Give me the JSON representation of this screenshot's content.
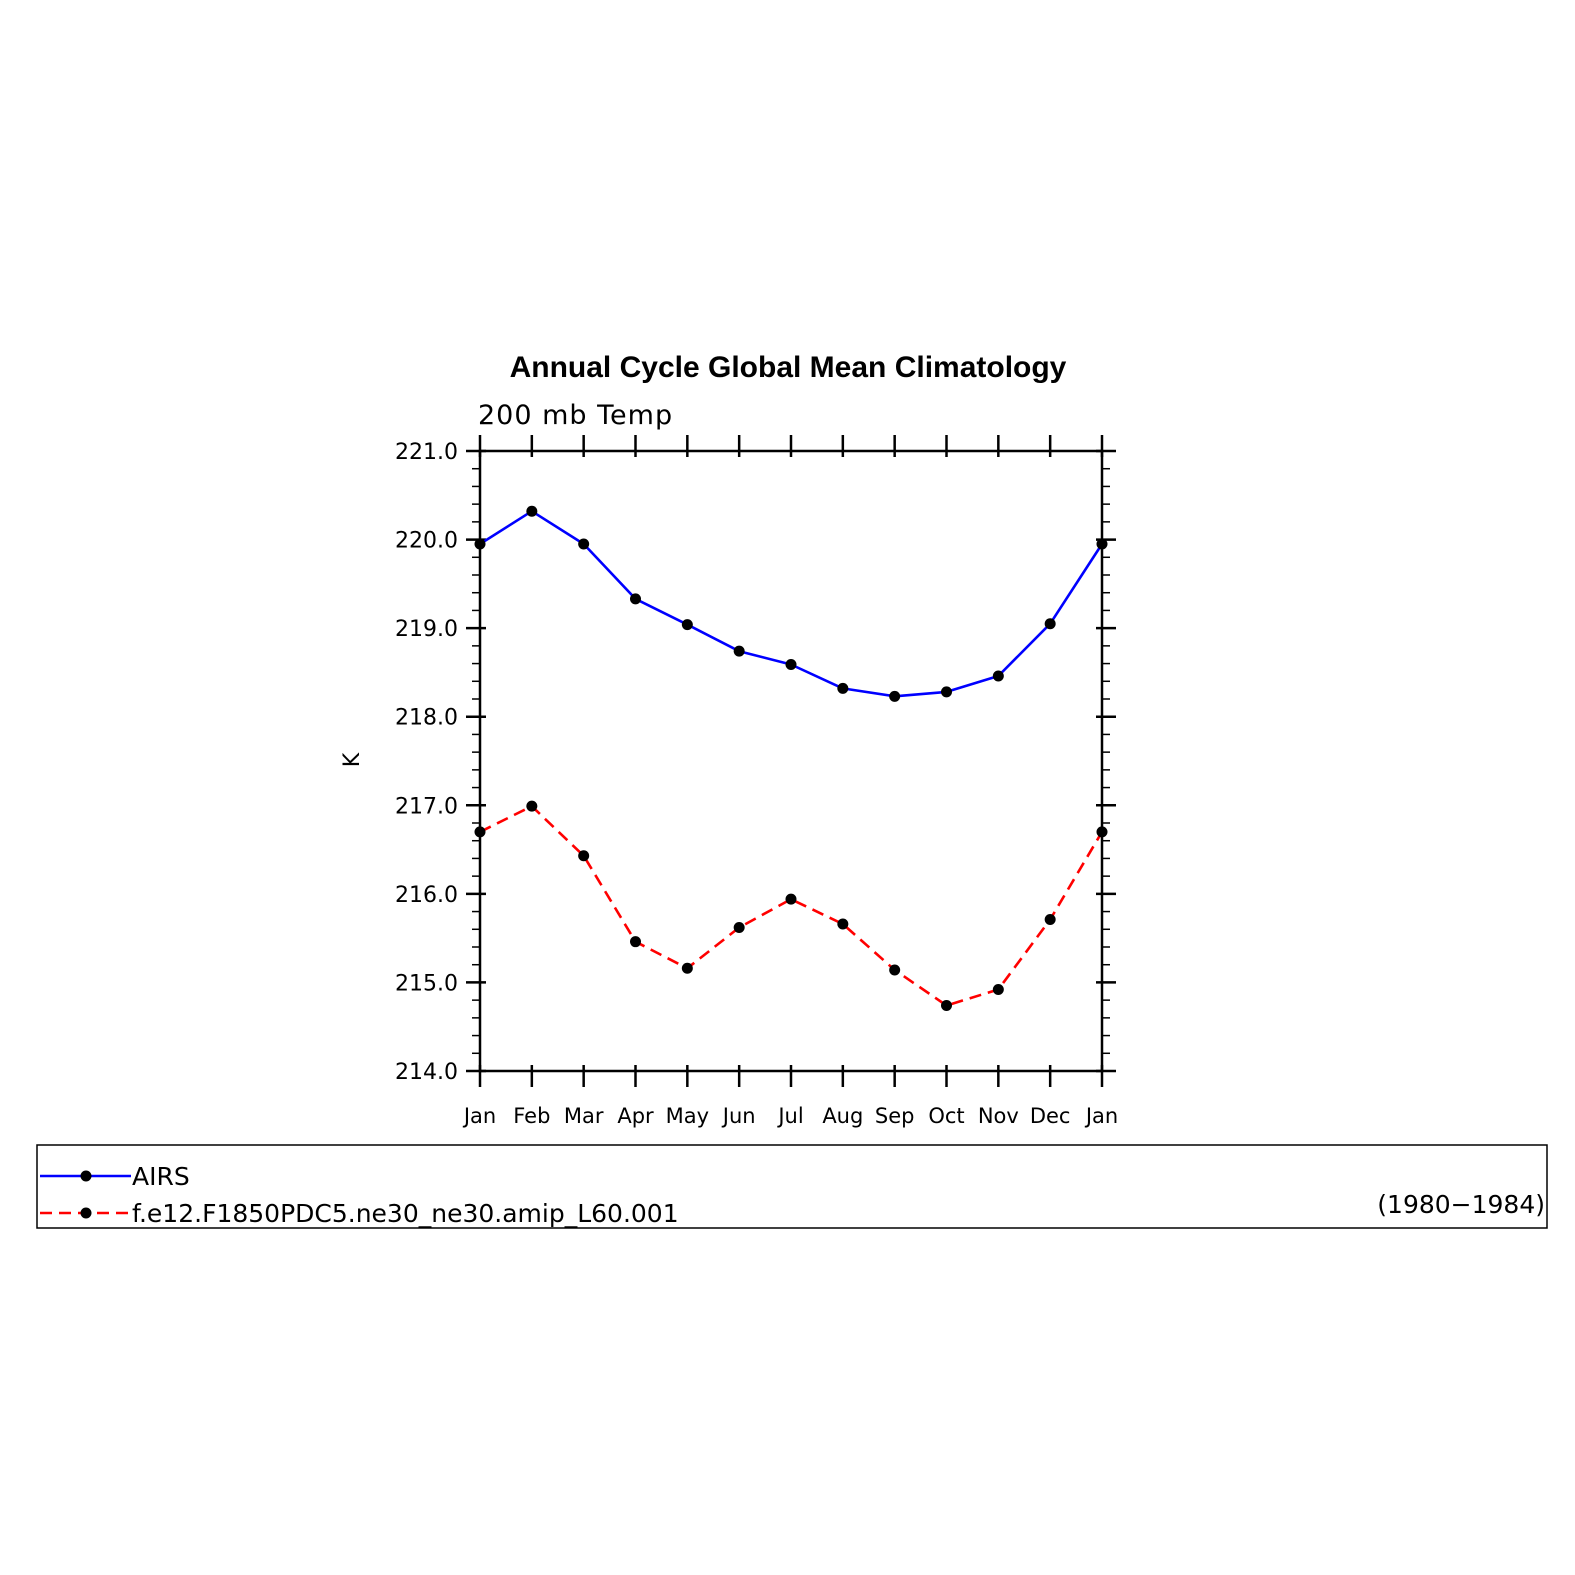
{
  "chart_data": {
    "type": "line",
    "title": "Annual Cycle Global Mean Climatology",
    "subtitle": "200 mb Temp",
    "ylabel": "K",
    "xlabel": "",
    "categories": [
      "Jan",
      "Feb",
      "Mar",
      "Apr",
      "May",
      "Jun",
      "Jul",
      "Aug",
      "Sep",
      "Oct",
      "Nov",
      "Dec",
      "Jan"
    ],
    "ylim": [
      214.0,
      221.0
    ],
    "yticks": [
      "214.0",
      "215.0",
      "216.0",
      "217.0",
      "218.0",
      "219.0",
      "220.0",
      "221.0"
    ],
    "series": [
      {
        "name": "AIRS",
        "color": "#0000ff",
        "dash": "solid",
        "values": [
          219.95,
          220.32,
          219.95,
          219.33,
          219.04,
          218.74,
          218.59,
          218.32,
          218.23,
          218.28,
          218.46,
          219.05,
          219.95
        ]
      },
      {
        "name": "f.e12.F1850PDC5.ne30_ne30.amip_L60.001",
        "color": "#ff0000",
        "dash": "dashed",
        "values": [
          216.7,
          216.99,
          216.43,
          215.46,
          215.16,
          215.62,
          215.94,
          215.66,
          215.14,
          214.74,
          214.92,
          215.71,
          216.7
        ]
      }
    ],
    "legend": {
      "position": "bottom",
      "years": "(1980−1984)"
    },
    "grid": false
  }
}
